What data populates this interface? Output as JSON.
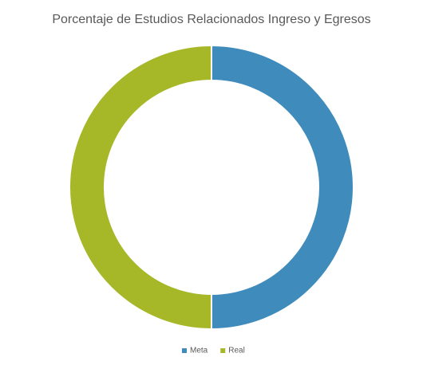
{
  "chart_data": {
    "type": "donut",
    "title": "Porcentaje de Estudios Relacionados Ingreso y Egresos",
    "categories": [
      "Meta",
      "Real"
    ],
    "values": [
      50,
      50
    ],
    "colors": [
      "#3f8bbb",
      "#a6b727"
    ],
    "legend": "bottom"
  }
}
